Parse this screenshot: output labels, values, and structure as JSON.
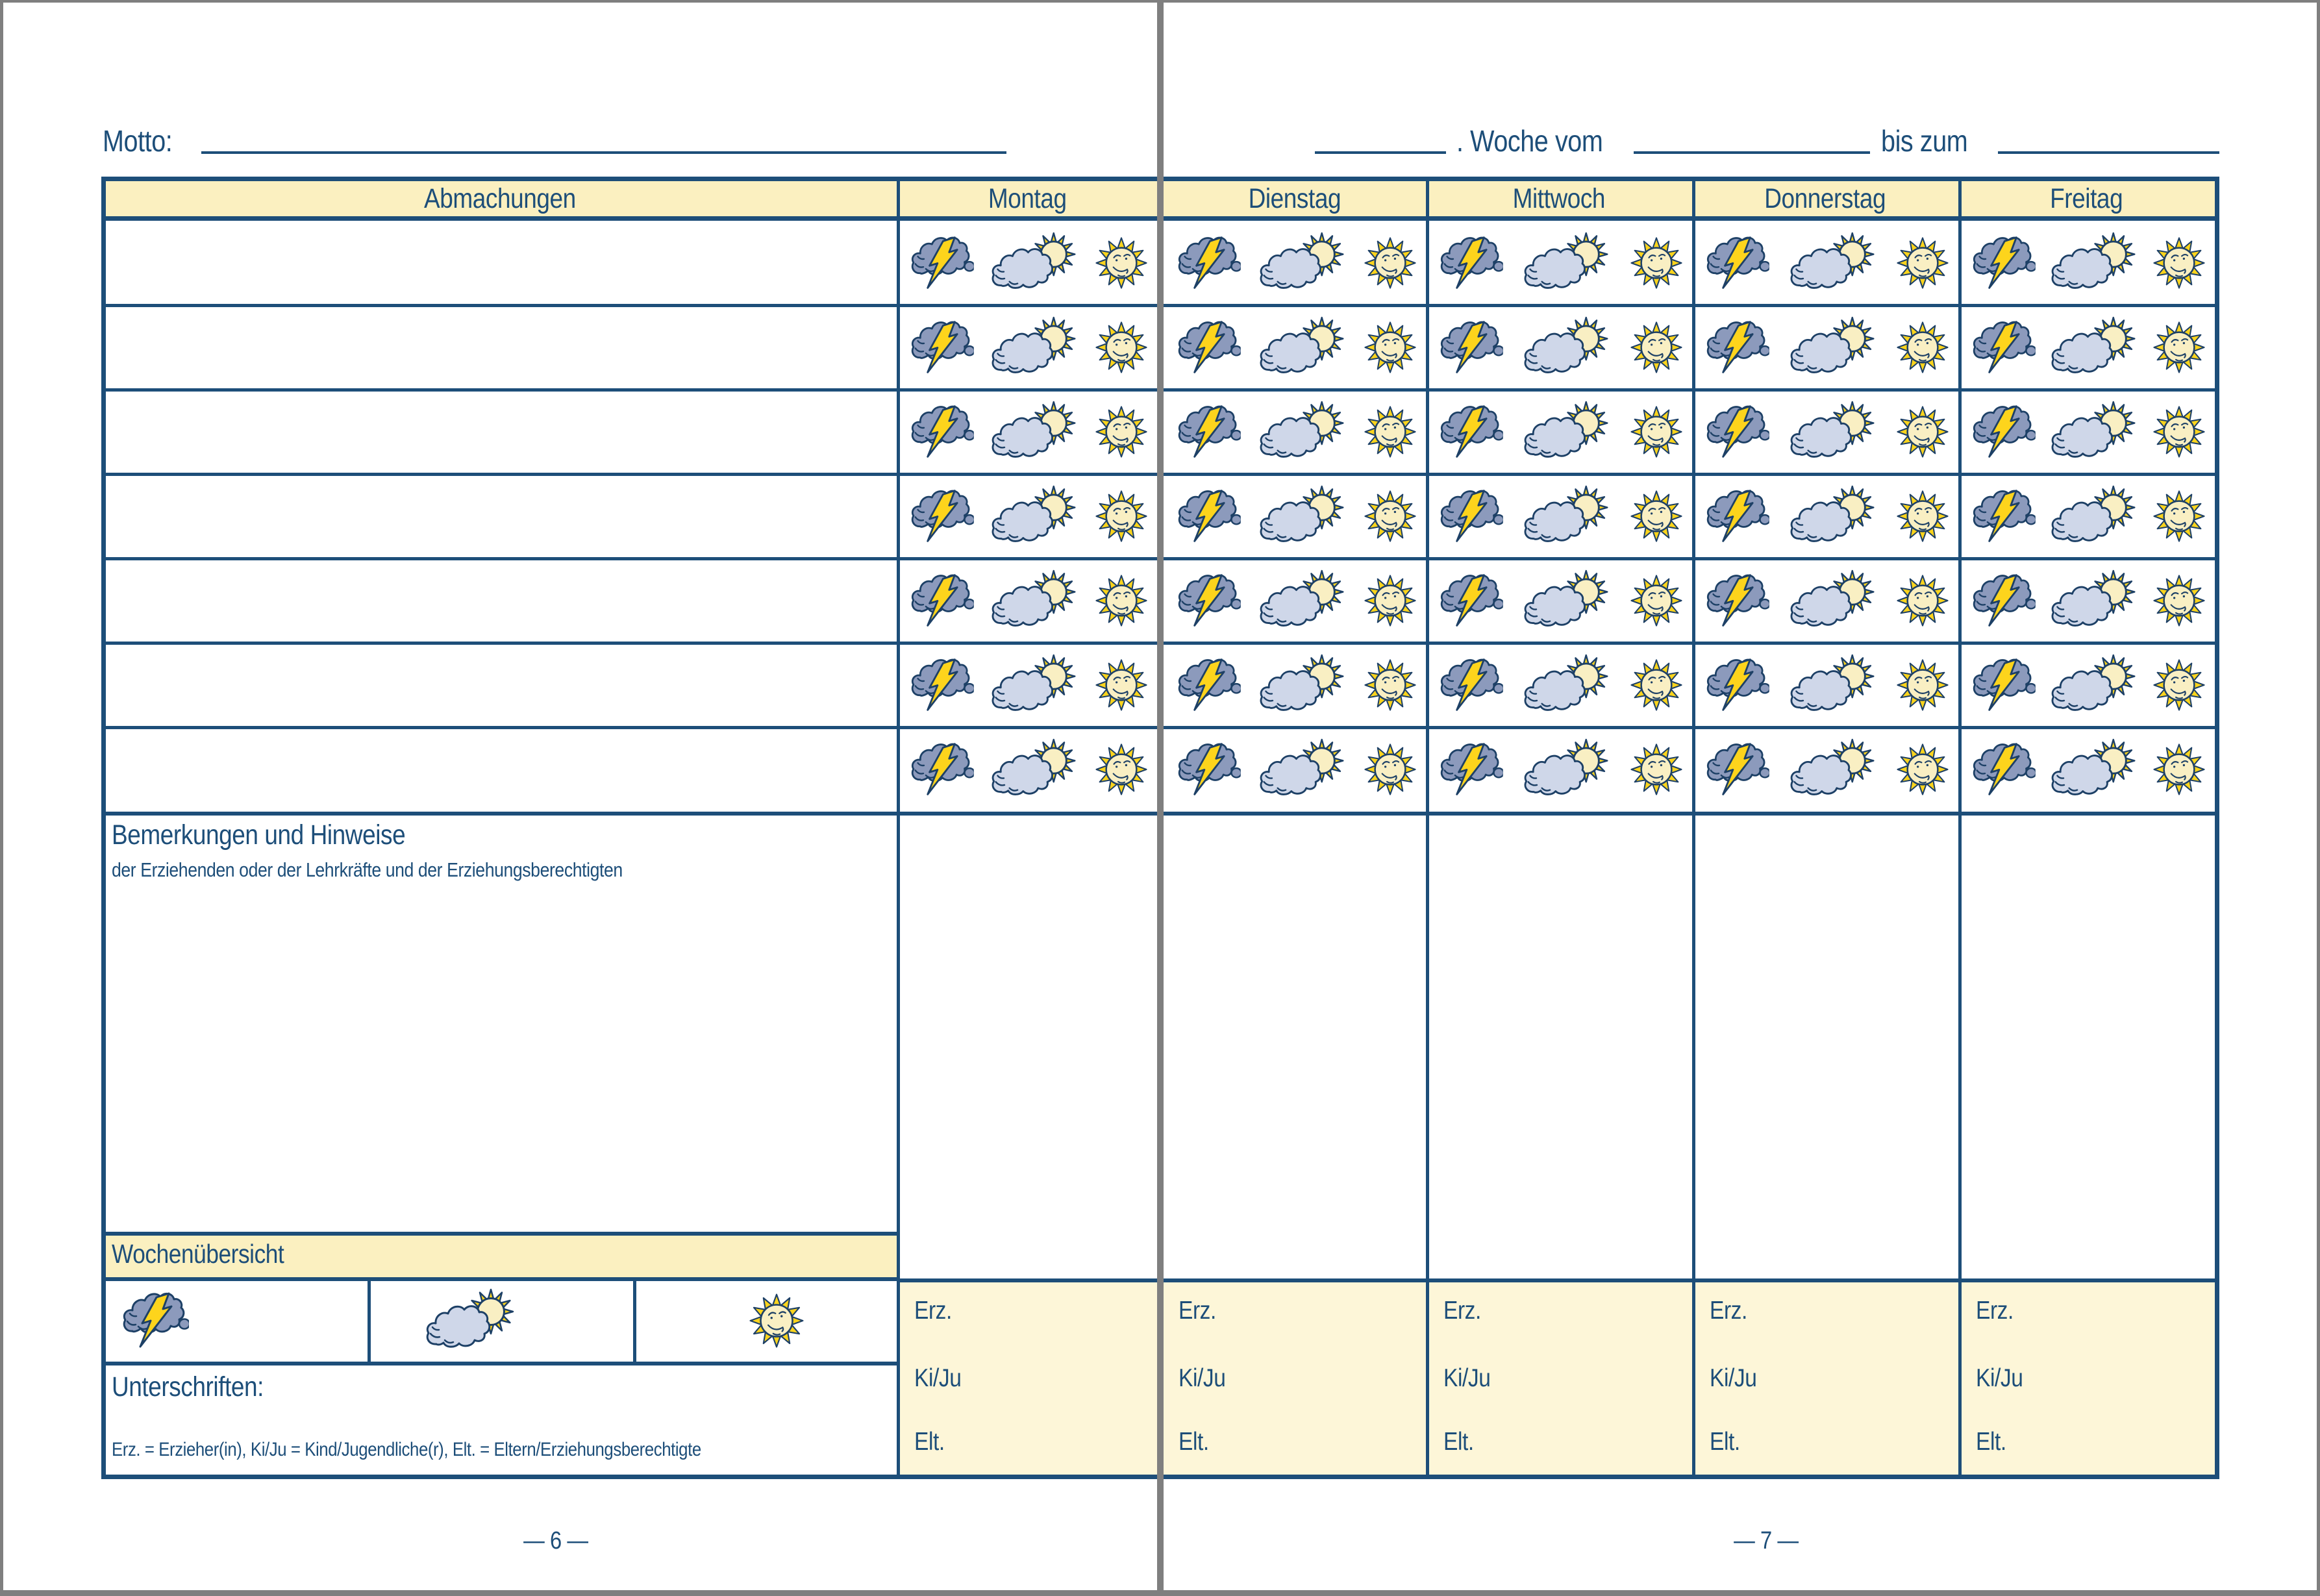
{
  "page_left": {
    "motto_label": "Motto:",
    "agreements_header": "Abmachungen",
    "day_header": "Montag",
    "remarks": {
      "title": "Bemerkungen und Hinweise",
      "subtitle": "der Erziehenden oder der Lehrkräfte und der Erziehungsberechtigten"
    },
    "week_overview_label": "Wochenübersicht",
    "signatures_label": "Unterschriften:",
    "legend_note": "Erz. = Erzieher(in), Ki/Ju = Kind/Jugendliche(r), Elt. = Eltern/Erziehungsberechtigte",
    "page_number": "— 6 —"
  },
  "page_right": {
    "week_line": {
      "woche_vom_label": ". Woche vom",
      "bis_zum_label": "bis zum"
    },
    "days": [
      "Dienstag",
      "Mittwoch",
      "Donnerstag",
      "Freitag"
    ],
    "page_number": "— 7 —"
  },
  "signature_rows": [
    "Erz.",
    "Ki/Ju",
    "Elt."
  ],
  "table": {
    "rows_per_day": 7,
    "cell_icons": [
      "storm-cloud-icon",
      "cloud-sun-icon",
      "sun-icon"
    ]
  },
  "colors": {
    "navy": "#1d4e79",
    "ink": "#1d4066",
    "cream_header": "#fbf0c0",
    "cream_light": "#fdf6d8",
    "cloud_dark": "#8c9abc",
    "cloud_light": "#cfd7e9",
    "sun_yellow": "#fdd41c",
    "sun_face": "#f9efc3",
    "divider_gray": "#7f7f7f"
  }
}
